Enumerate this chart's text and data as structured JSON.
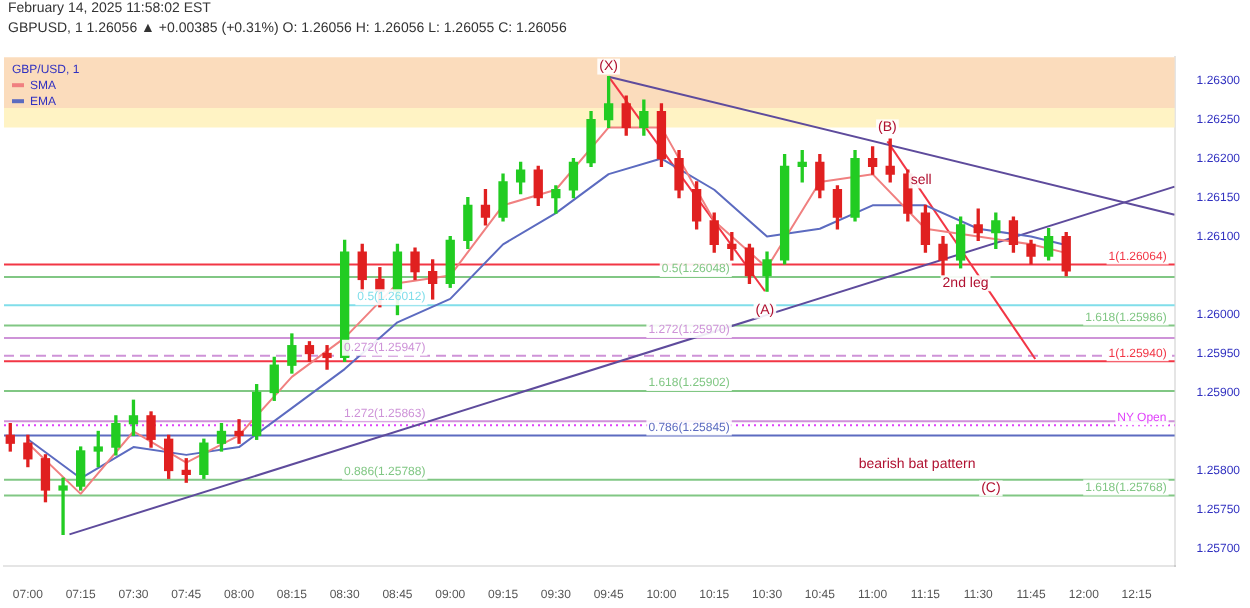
{
  "chart_data": {
    "type": "candlestick",
    "title": "GBPUSD, 1  1.26056 ▲ +0.00385 (+0.31%) O: 1.26056 H: 1.26056 L: 1.26055 C: 1.26056",
    "subtitle": "February 14, 2025 11:58:02 EST",
    "legend_title": "GBP/USD, 1",
    "legend": "top left",
    "x": [
      6.9167,
      7,
      7.0833,
      7.1667,
      7.25,
      7.3333,
      7.4167,
      7.5,
      7.5833,
      7.6667,
      7.75,
      7.8333,
      7.9167,
      8,
      8.0833,
      8.1667,
      8.25,
      8.3333,
      8.4167,
      8.5,
      8.5833,
      8.6667,
      8.75,
      8.8333,
      8.9167,
      9,
      9.0833,
      9.1667,
      9.25,
      9.3333,
      9.4167,
      9.5,
      9.5833,
      9.6667,
      9.75,
      9.8333,
      9.9167,
      10,
      10.0833,
      10.1667,
      10.25,
      10.3333,
      10.4167,
      10.5,
      10.5833,
      10.6667,
      10.75,
      10.8333,
      10.9167,
      11,
      11.0833,
      11.1667,
      11.25,
      11.3333,
      11.4167,
      11.5,
      11.5833,
      11.6667,
      11.75,
      11.8333,
      11.9167
    ],
    "ohlc": [
      [
        1.25845,
        1.2586,
        1.25825,
        1.25835
      ],
      [
        1.25835,
        1.25845,
        1.25805,
        1.25815
      ],
      [
        1.25815,
        1.2582,
        1.2576,
        1.25775
      ],
      [
        1.25775,
        1.2579,
        1.25718,
        1.2578
      ],
      [
        1.2578,
        1.2583,
        1.25775,
        1.25825
      ],
      [
        1.25825,
        1.2585,
        1.25805,
        1.2583
      ],
      [
        1.2583,
        1.2587,
        1.2582,
        1.2586
      ],
      [
        1.2586,
        1.2589,
        1.25845,
        1.2587
      ],
      [
        1.2587,
        1.25875,
        1.2583,
        1.2584
      ],
      [
        1.2584,
        1.25845,
        1.2579,
        1.258
      ],
      [
        1.258,
        1.25815,
        1.25785,
        1.25795
      ],
      [
        1.25795,
        1.2584,
        1.2579,
        1.25835
      ],
      [
        1.25835,
        1.2586,
        1.25825,
        1.2585
      ],
      [
        1.2585,
        1.25865,
        1.25835,
        1.25845
      ],
      [
        1.25845,
        1.2591,
        1.2584,
        1.259
      ],
      [
        1.259,
        1.25945,
        1.2589,
        1.25935
      ],
      [
        1.25935,
        1.25975,
        1.25925,
        1.2596
      ],
      [
        1.2596,
        1.25965,
        1.2594,
        1.2595
      ],
      [
        1.2595,
        1.2596,
        1.2593,
        1.25945
      ],
      [
        1.25945,
        1.26095,
        1.2594,
        1.2608
      ],
      [
        1.2608,
        1.2609,
        1.2603,
        1.26045
      ],
      [
        1.26045,
        1.2606,
        1.2601,
        1.2603
      ],
      [
        1.2603,
        1.2609,
        1.26,
        1.2608
      ],
      [
        1.2608,
        1.26085,
        1.26045,
        1.26055
      ],
      [
        1.26055,
        1.2607,
        1.2602,
        1.2604
      ],
      [
        1.2604,
        1.261,
        1.26035,
        1.26095
      ],
      [
        1.26095,
        1.2615,
        1.26085,
        1.2614
      ],
      [
        1.2614,
        1.2616,
        1.26115,
        1.26125
      ],
      [
        1.26125,
        1.2618,
        1.2612,
        1.2617
      ],
      [
        1.2617,
        1.26195,
        1.26155,
        1.26185
      ],
      [
        1.26185,
        1.2619,
        1.2614,
        1.2615
      ],
      [
        1.2615,
        1.26165,
        1.2613,
        1.2616
      ],
      [
        1.2616,
        1.262,
        1.2615,
        1.26195
      ],
      [
        1.26195,
        1.2626,
        1.2619,
        1.2625
      ],
      [
        1.2625,
        1.26305,
        1.2624,
        1.2627
      ],
      [
        1.2627,
        1.2628,
        1.2623,
        1.2624
      ],
      [
        1.2624,
        1.26275,
        1.2623,
        1.2626
      ],
      [
        1.2626,
        1.2627,
        1.2619,
        1.262
      ],
      [
        1.262,
        1.2621,
        1.2615,
        1.2616
      ],
      [
        1.2616,
        1.2617,
        1.2611,
        1.2612
      ],
      [
        1.2612,
        1.2613,
        1.2608,
        1.2609
      ],
      [
        1.2609,
        1.26105,
        1.2607,
        1.26085
      ],
      [
        1.26085,
        1.2609,
        1.2604,
        1.2605
      ],
      [
        1.2605,
        1.2608,
        1.2603,
        1.2607
      ],
      [
        1.2607,
        1.26205,
        1.26065,
        1.2619
      ],
      [
        1.2619,
        1.2621,
        1.2617,
        1.26195
      ],
      [
        1.26195,
        1.26205,
        1.2615,
        1.2616
      ],
      [
        1.2616,
        1.26165,
        1.2611,
        1.26125
      ],
      [
        1.26125,
        1.2621,
        1.2612,
        1.262
      ],
      [
        1.262,
        1.26215,
        1.2618,
        1.2619
      ],
      [
        1.2619,
        1.26225,
        1.2617,
        1.2618
      ],
      [
        1.2618,
        1.26185,
        1.2612,
        1.2613
      ],
      [
        1.2613,
        1.2614,
        1.2608,
        1.2609
      ],
      [
        1.2609,
        1.261,
        1.2605,
        1.2607
      ],
      [
        1.2607,
        1.26125,
        1.2606,
        1.26115
      ],
      [
        1.26115,
        1.26135,
        1.26095,
        1.26105
      ],
      [
        1.26105,
        1.2613,
        1.26085,
        1.2612
      ],
      [
        1.2612,
        1.26125,
        1.2608,
        1.2609
      ],
      [
        1.2609,
        1.26095,
        1.26065,
        1.26075
      ],
      [
        1.26075,
        1.2611,
        1.2607,
        1.261
      ],
      [
        1.261,
        1.26105,
        1.2605,
        1.26056
      ]
    ],
    "colors": [
      "#e02020",
      "#e02020",
      "#e02020",
      "#22cc22",
      "#22cc22",
      "#22cc22",
      "#22cc22",
      "#22cc22",
      "#e02020",
      "#e02020",
      "#e02020",
      "#22cc22",
      "#22cc22",
      "#e02020",
      "#22cc22",
      "#22cc22",
      "#22cc22",
      "#e02020",
      "#e02020",
      "#22cc22",
      "#e02020",
      "#e02020",
      "#22cc22",
      "#e02020",
      "#e02020",
      "#22cc22",
      "#22cc22",
      "#e02020",
      "#22cc22",
      "#22cc22",
      "#e02020",
      "#22cc22",
      "#22cc22",
      "#22cc22",
      "#22cc22",
      "#e02020",
      "#22cc22",
      "#e02020",
      "#e02020",
      "#e02020",
      "#e02020",
      "#e02020",
      "#e02020",
      "#22cc22",
      "#22cc22",
      "#22cc22",
      "#e02020",
      "#e02020",
      "#22cc22",
      "#e02020",
      "#e02020",
      "#e02020",
      "#e02020",
      "#e02020",
      "#22cc22",
      "#e02020",
      "#22cc22",
      "#e02020",
      "#e02020",
      "#22cc22",
      "#e02020"
    ],
    "series": [
      {
        "name": "SMA",
        "type": "line",
        "color": "#f08080",
        "x": [
          7,
          7.25,
          7.5,
          7.75,
          8,
          8.25,
          8.5,
          8.75,
          9,
          9.25,
          9.5,
          9.75,
          10,
          10.25,
          10.5,
          10.75,
          11,
          11.25,
          11.5,
          11.75,
          11.9
        ],
        "values": [
          1.25835,
          1.2577,
          1.2585,
          1.2581,
          1.25845,
          1.2592,
          1.2597,
          1.2604,
          1.2605,
          1.2614,
          1.2616,
          1.2624,
          1.2624,
          1.2612,
          1.2606,
          1.2617,
          1.2618,
          1.2611,
          1.261,
          1.2609,
          1.2608
        ]
      },
      {
        "name": "EMA",
        "type": "line",
        "color": "#5c6bc0",
        "x": [
          7,
          7.25,
          7.5,
          7.75,
          8,
          8.25,
          8.5,
          8.75,
          9,
          9.25,
          9.5,
          9.75,
          10,
          10.25,
          10.5,
          10.75,
          11,
          11.25,
          11.5,
          11.75,
          11.9
        ],
        "values": [
          1.2584,
          1.2579,
          1.2583,
          1.2582,
          1.2583,
          1.2588,
          1.2593,
          1.2599,
          1.2602,
          1.2609,
          1.2613,
          1.2618,
          1.262,
          1.2616,
          1.261,
          1.2611,
          1.2614,
          1.2614,
          1.2611,
          1.261,
          1.2609
        ]
      },
      {
        "type": "line",
        "color": "#5e4b9c",
        "x": [
          9.75,
          12.43
        ],
        "values": [
          1.26305,
          1.26128
        ]
      },
      {
        "type": "line",
        "color": "#5e4b9c",
        "x": [
          7.197,
          12.43
        ],
        "values": [
          1.25718,
          1.26164
        ]
      },
      {
        "type": "line",
        "color": "#f23645",
        "x": [
          9.75,
          10.49
        ],
        "values": [
          1.26305,
          1.2603
        ]
      },
      {
        "type": "line",
        "color": "#f23645",
        "x": [
          11.07,
          11.77
        ],
        "values": [
          1.26222,
          1.25943
        ]
      }
    ],
    "xlim": [
      6.887,
      12.43
    ],
    "ylim": [
      1.25678,
      1.2633
    ],
    "xticks": [
      {
        "value": 7,
        "label": "07:00"
      },
      {
        "value": 7.25,
        "label": "07:15"
      },
      {
        "value": 7.5,
        "label": "07:30"
      },
      {
        "value": 7.75,
        "label": "07:45"
      },
      {
        "value": 8,
        "label": "08:00"
      },
      {
        "value": 8.25,
        "label": "08:15"
      },
      {
        "value": 8.5,
        "label": "08:30"
      },
      {
        "value": 8.75,
        "label": "08:45"
      },
      {
        "value": 9,
        "label": "09:00"
      },
      {
        "value": 9.25,
        "label": "09:15"
      },
      {
        "value": 9.5,
        "label": "09:30"
      },
      {
        "value": 9.75,
        "label": "09:45"
      },
      {
        "value": 10,
        "label": "10:00"
      },
      {
        "value": 10.25,
        "label": "10:15"
      },
      {
        "value": 10.5,
        "label": "10:30"
      },
      {
        "value": 10.75,
        "label": "10:45"
      },
      {
        "value": 11,
        "label": "11:00"
      },
      {
        "value": 11.25,
        "label": "11:15"
      },
      {
        "value": 11.5,
        "label": "11:30"
      },
      {
        "value": 11.75,
        "label": "11:45"
      },
      {
        "value": 12,
        "label": "12:00"
      },
      {
        "value": 12.25,
        "label": "12:15"
      }
    ],
    "yticks": [
      {
        "value": 1.257,
        "label": "1.25700"
      },
      {
        "value": 1.2575,
        "label": "1.25750"
      },
      {
        "value": 1.258,
        "label": "1.25800"
      },
      {
        "value": 1.259,
        "label": "1.25900"
      },
      {
        "value": 1.2595,
        "label": "1.25950"
      },
      {
        "value": 1.26,
        "label": "1.26000"
      },
      {
        "value": 1.261,
        "label": "1.26100"
      },
      {
        "value": 1.2615,
        "label": "1.26150"
      },
      {
        "value": 1.262,
        "label": "1.26200"
      },
      {
        "value": 1.2625,
        "label": "1.26250"
      },
      {
        "value": 1.263,
        "label": "1.26300"
      }
    ],
    "bands": [
      {
        "axis": "y",
        "from": 1.26265,
        "to": 1.2633,
        "color": "#fbdcbc"
      },
      {
        "axis": "y",
        "from": 1.2624,
        "to": 1.26265,
        "color": "#fff3c4"
      }
    ],
    "ref_lines": [
      {
        "axis": "y",
        "value": 1.26064,
        "label": "1(1.26064)",
        "color": "#f23645"
      },
      {
        "axis": "y",
        "value": 1.26048,
        "label": "0.5(1.26048)",
        "color": "#81c784"
      },
      {
        "axis": "y",
        "value": 1.26012,
        "label": "0.5(1.26012)",
        "color": "#80deea"
      },
      {
        "axis": "y",
        "value": 1.25986,
        "label": "1.618(1.25986)",
        "color": "#81c784"
      },
      {
        "axis": "y",
        "value": 1.2597,
        "label": "1.272(1.25970)",
        "color": "#ce93d8"
      },
      {
        "axis": "y",
        "value": 1.25947,
        "label": "0.272(1.25947)",
        "color": "#ce93d8",
        "line_style": "dashed"
      },
      {
        "axis": "y",
        "value": 1.2594,
        "label": "1(1.25940)",
        "color": "#f23645"
      },
      {
        "axis": "y",
        "value": 1.25902,
        "label": "1.618(1.25902)",
        "color": "#81c784"
      },
      {
        "axis": "y",
        "value": 1.25863,
        "label": "1.272(1.25863)",
        "color": "#ce93d8"
      },
      {
        "axis": "y",
        "value": 1.25858,
        "label": "NY Open",
        "color": "#e040fb",
        "line_style": "dotted"
      },
      {
        "axis": "y",
        "value": 1.25845,
        "label": "0.786(1.25845)",
        "color": "#5c6bc0"
      },
      {
        "axis": "y",
        "value": 1.25788,
        "label": "0.886(1.25788)",
        "color": "#81c784"
      },
      {
        "axis": "y",
        "value": 1.25768,
        "label": "1.618(1.25768)",
        "color": "#81c784"
      }
    ],
    "annotations": [
      {
        "text": "(X)",
        "x": 9.75,
        "y": 1.26318
      },
      {
        "text": "(A)",
        "x": 10.49,
        "y": 1.26005
      },
      {
        "text": "(B)",
        "x": 11.07,
        "y": 1.2624
      },
      {
        "text": "(C)",
        "x": 11.56,
        "y": 1.25777
      },
      {
        "text": "sell",
        "x": 11.23,
        "y": 1.26172
      },
      {
        "text": "2nd leg",
        "x": 11.44,
        "y": 1.2604
      },
      "bearish bat pattern"
    ]
  }
}
